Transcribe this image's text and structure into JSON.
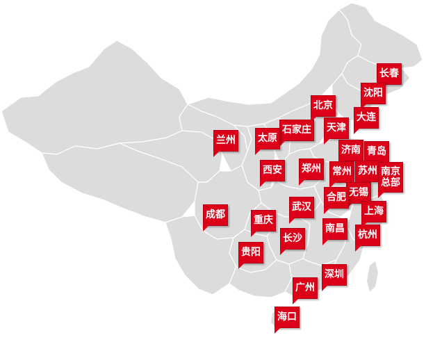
{
  "map": {
    "colors": {
      "land": "#dcdcdc",
      "border": "#ffffff",
      "pin": "#dc0018",
      "pin_text": "#ffffff"
    },
    "cities": {
      "changchun": "长春",
      "shenyang": "沈阳",
      "beijing": "北京",
      "dalian": "大连",
      "tianjin": "天津",
      "shijiazhuang": "石家庄",
      "taiyuan": "太原",
      "lanzhou": "兰州",
      "jinan": "济南",
      "qingdao": "青岛",
      "xian": "西安",
      "zhengzhou": "郑州",
      "changzhou": "常州",
      "suzhou": "苏州",
      "nanjing_line1": "南京",
      "nanjing_line2": "总部",
      "wuxi": "无锡",
      "hefei": "合肥",
      "wuhan": "武汉",
      "chengdu": "成都",
      "chongqing": "重庆",
      "shanghai": "上海",
      "nanchang": "南昌",
      "hangzhou": "杭州",
      "changsha": "长沙",
      "guiyang": "贵阳",
      "shenzhen": "深圳",
      "guangzhou": "广州",
      "haikou": "海口"
    }
  }
}
